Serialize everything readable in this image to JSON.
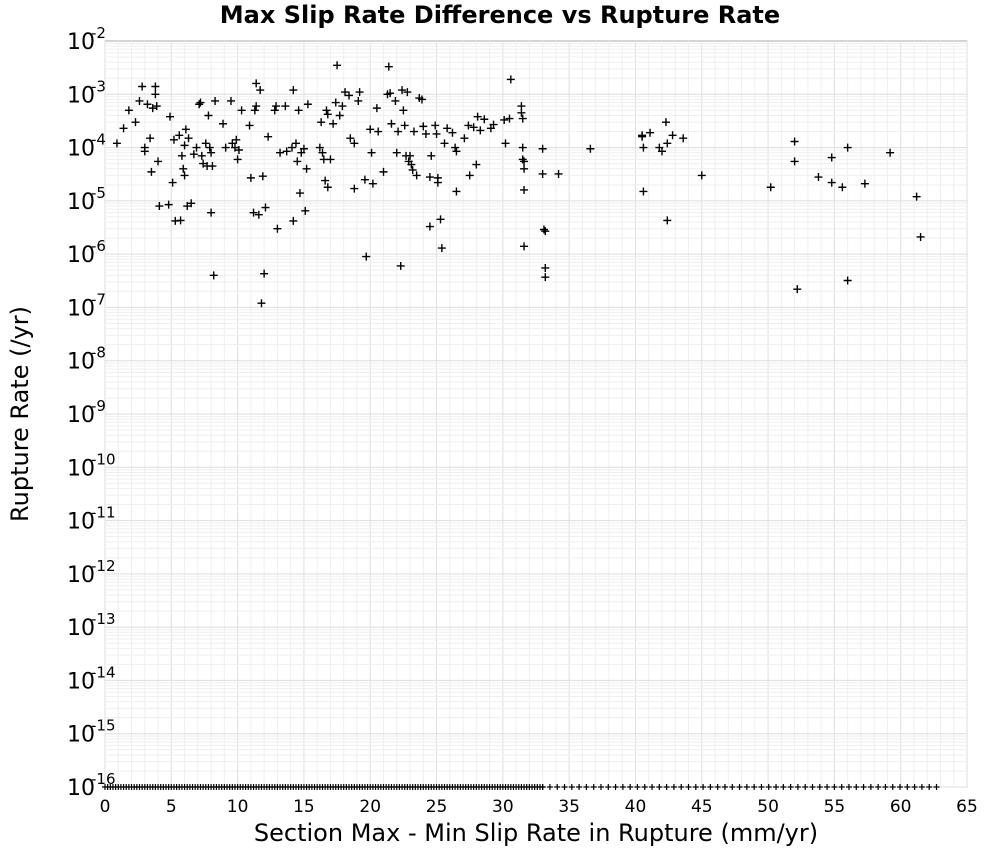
{
  "chart_data": {
    "type": "scatter",
    "title": "Max Slip Rate Difference vs Rupture Rate",
    "xlabel": "Section Max - Min Slip Rate in Rupture (mm/yr)",
    "ylabel": "Rupture Rate (/yr)",
    "xlim": [
      0,
      65
    ],
    "ylim": [
      1e-16,
      0.01
    ],
    "yscale": "log",
    "grid": true,
    "marker": "plus",
    "marker_color": "#000000",
    "x_ticks": [
      "0",
      "5",
      "10",
      "15",
      "20",
      "25",
      "30",
      "35",
      "40",
      "45",
      "50",
      "55",
      "60",
      "65"
    ],
    "y_ticks": [
      {
        "base": "10",
        "exp": "-2"
      },
      {
        "base": "10",
        "exp": "-3"
      },
      {
        "base": "10",
        "exp": "-4"
      },
      {
        "base": "10",
        "exp": "-5"
      },
      {
        "base": "10",
        "exp": "-6"
      },
      {
        "base": "10",
        "exp": "-7"
      },
      {
        "base": "10",
        "exp": "-8"
      },
      {
        "base": "10",
        "exp": "-9"
      },
      {
        "base": "10",
        "exp": "-10"
      },
      {
        "base": "10",
        "exp": "-11"
      },
      {
        "base": "10",
        "exp": "-12"
      },
      {
        "base": "10",
        "exp": "-13"
      },
      {
        "base": "10",
        "exp": "-14"
      },
      {
        "base": "10",
        "exp": "-15"
      },
      {
        "base": "10",
        "exp": "-16"
      }
    ],
    "points": [
      [
        0.9,
        0.00012
      ],
      [
        1.4,
        0.00023
      ],
      [
        1.8,
        0.0005
      ],
      [
        2.3,
        0.0003
      ],
      [
        2.6,
        0.00075
      ],
      [
        2.8,
        0.0014
      ],
      [
        3.0,
        0.0001
      ],
      [
        3.0,
        8.5e-05
      ],
      [
        3.2,
        0.00065
      ],
      [
        3.4,
        0.00015
      ],
      [
        3.5,
        3.5e-05
      ],
      [
        3.6,
        0.00055
      ],
      [
        3.8,
        0.0014
      ],
      [
        3.8,
        0.001
      ],
      [
        3.9,
        0.0006
      ],
      [
        4.0,
        5.5e-05
      ],
      [
        4.1,
        8e-06
      ],
      [
        4.8,
        8.5e-06
      ],
      [
        4.9,
        0.00038
      ],
      [
        5.1,
        2.2e-05
      ],
      [
        5.2,
        0.00014
      ],
      [
        5.3,
        4.2e-06
      ],
      [
        5.6,
        0.00017
      ],
      [
        5.7,
        4.3e-06
      ],
      [
        5.8,
        7e-05
      ],
      [
        5.9,
        4e-05
      ],
      [
        6.0,
        0.00011
      ],
      [
        6.0,
        3e-05
      ],
      [
        6.1,
        0.00022
      ],
      [
        6.2,
        8e-06
      ],
      [
        6.3,
        0.00015
      ],
      [
        6.5,
        9e-06
      ],
      [
        6.7,
        7.5e-05
      ],
      [
        6.9,
        0.0001
      ],
      [
        7.1,
        0.00065
      ],
      [
        7.2,
        0.0007
      ],
      [
        7.3,
        7e-05
      ],
      [
        7.4,
        5e-05
      ],
      [
        7.6,
        0.00012
      ],
      [
        7.7,
        4.5e-05
      ],
      [
        7.8,
        0.0004
      ],
      [
        7.9,
        0.0001
      ],
      [
        8.0,
        8e-05
      ],
      [
        8.0,
        6e-06
      ],
      [
        8.1,
        4.5e-05
      ],
      [
        8.2,
        4e-07
      ],
      [
        8.3,
        0.00075
      ],
      [
        8.9,
        0.00028
      ],
      [
        9.1,
        0.0001
      ],
      [
        9.5,
        0.00075
      ],
      [
        9.6,
        0.00012
      ],
      [
        9.8,
        0.0001
      ],
      [
        9.9,
        0.00014
      ],
      [
        10.0,
        6e-05
      ],
      [
        10.1,
        9e-05
      ],
      [
        10.3,
        0.0005
      ],
      [
        10.9,
        0.00026
      ],
      [
        11.0,
        2.7e-05
      ],
      [
        11.2,
        6e-06
      ],
      [
        11.3,
        0.0005
      ],
      [
        11.4,
        0.0006
      ],
      [
        11.4,
        0.0016
      ],
      [
        11.6,
        5.5e-06
      ],
      [
        11.7,
        0.0012
      ],
      [
        11.8,
        1.2e-07
      ],
      [
        11.9,
        2.9e-05
      ],
      [
        12.0,
        4.3e-07
      ],
      [
        12.1,
        7.5e-06
      ],
      [
        12.3,
        0.00016
      ],
      [
        12.8,
        0.0005
      ],
      [
        12.9,
        0.0006
      ],
      [
        13.0,
        3e-06
      ],
      [
        13.2,
        8e-05
      ],
      [
        13.6,
        0.0006
      ],
      [
        13.7,
        8.5e-05
      ],
      [
        14.1,
        0.0001
      ],
      [
        14.2,
        0.0012
      ],
      [
        14.2,
        4.2e-06
      ],
      [
        14.4,
        0.00012
      ],
      [
        14.5,
        5.5e-05
      ],
      [
        14.6,
        0.0005
      ],
      [
        14.7,
        1.4e-05
      ],
      [
        14.8,
        8e-05
      ],
      [
        15.0,
        9.5e-05
      ],
      [
        15.1,
        6.5e-06
      ],
      [
        15.2,
        4e-05
      ],
      [
        15.3,
        0.00065
      ],
      [
        16.2,
        0.0001
      ],
      [
        16.3,
        0.0003
      ],
      [
        16.4,
        8e-05
      ],
      [
        16.5,
        6e-05
      ],
      [
        16.6,
        2.4e-05
      ],
      [
        16.7,
        0.0005
      ],
      [
        16.8,
        0.00042
      ],
      [
        16.8,
        1.8e-05
      ],
      [
        17.0,
        6e-05
      ],
      [
        17.2,
        0.00028
      ],
      [
        17.4,
        0.0007
      ],
      [
        17.5,
        0.0035
      ],
      [
        17.7,
        0.0004
      ],
      [
        17.9,
        0.0006
      ],
      [
        18.1,
        0.0011
      ],
      [
        18.4,
        0.00095
      ],
      [
        18.5,
        0.00015
      ],
      [
        18.8,
        1.7e-05
      ],
      [
        18.8,
        0.00012
      ],
      [
        19.1,
        0.00075
      ],
      [
        19.2,
        0.0011
      ],
      [
        19.6,
        2.5e-05
      ],
      [
        19.7,
        9e-07
      ],
      [
        20.0,
        0.00022
      ],
      [
        20.1,
        8e-05
      ],
      [
        20.2,
        2.1e-05
      ],
      [
        20.5,
        0.00055
      ],
      [
        20.6,
        0.0002
      ],
      [
        21.0,
        3.5e-05
      ],
      [
        21.3,
        0.001
      ],
      [
        21.4,
        0.0033
      ],
      [
        21.5,
        0.00105
      ],
      [
        21.6,
        0.00028
      ],
      [
        21.9,
        0.00075
      ],
      [
        22.0,
        8e-05
      ],
      [
        22.1,
        0.0002
      ],
      [
        22.3,
        6e-07
      ],
      [
        22.4,
        0.0012
      ],
      [
        22.5,
        0.0005
      ],
      [
        22.6,
        0.00026
      ],
      [
        22.7,
        7e-05
      ],
      [
        22.8,
        0.0011
      ],
      [
        22.9,
        5.5e-05
      ],
      [
        23.0,
        7e-05
      ],
      [
        23.1,
        4.8e-05
      ],
      [
        23.2,
        3.8e-05
      ],
      [
        23.3,
        0.0002
      ],
      [
        23.5,
        3e-05
      ],
      [
        23.7,
        0.00085
      ],
      [
        23.9,
        0.0008
      ],
      [
        24.0,
        0.00025
      ],
      [
        24.2,
        0.00018
      ],
      [
        24.5,
        2.8e-05
      ],
      [
        24.5,
        3.3e-06
      ],
      [
        24.6,
        7e-05
      ],
      [
        24.9,
        0.00026
      ],
      [
        25.0,
        0.00018
      ],
      [
        25.1,
        2.7e-05
      ],
      [
        25.1,
        2.2e-05
      ],
      [
        25.3,
        4.5e-06
      ],
      [
        25.4,
        1.3e-06
      ],
      [
        25.6,
        0.00012
      ],
      [
        25.8,
        0.00023
      ],
      [
        26.2,
        0.00019
      ],
      [
        26.4,
        0.0001
      ],
      [
        26.5,
        8.5e-05
      ],
      [
        26.5,
        1.5e-05
      ],
      [
        27.1,
        0.00015
      ],
      [
        27.4,
        0.00026
      ],
      [
        27.5,
        3e-05
      ],
      [
        27.8,
        0.00024
      ],
      [
        28.0,
        4.8e-05
      ],
      [
        28.1,
        0.00038
      ],
      [
        28.3,
        0.00021
      ],
      [
        28.6,
        0.00034
      ],
      [
        29.1,
        0.00023
      ],
      [
        29.3,
        0.00027
      ],
      [
        30.1,
        0.00033
      ],
      [
        30.2,
        0.00012
      ],
      [
        30.5,
        0.00035
      ],
      [
        30.6,
        0.0019
      ],
      [
        31.4,
        0.0006
      ],
      [
        31.4,
        0.00045
      ],
      [
        31.5,
        0.00035
      ],
      [
        31.5,
        0.0001
      ],
      [
        31.5,
        6e-05
      ],
      [
        31.6,
        5.5e-05
      ],
      [
        31.6,
        4e-05
      ],
      [
        31.6,
        1.6e-05
      ],
      [
        31.6,
        1.4e-06
      ],
      [
        33.0,
        3.2e-05
      ],
      [
        33.0,
        9.5e-05
      ],
      [
        33.1,
        2.9e-06
      ],
      [
        33.2,
        2.7e-06
      ],
      [
        33.2,
        5.5e-07
      ],
      [
        33.2,
        3.7e-07
      ],
      [
        34.2,
        3.2e-05
      ],
      [
        36.6,
        9.5e-05
      ],
      [
        40.5,
        0.00017
      ],
      [
        40.5,
        0.00016
      ],
      [
        40.6,
        0.0001
      ],
      [
        40.6,
        1.5e-05
      ],
      [
        41.1,
        0.00019
      ],
      [
        41.8,
        0.0001
      ],
      [
        42.0,
        8.5e-05
      ],
      [
        42.3,
        0.0003
      ],
      [
        42.4,
        0.00012
      ],
      [
        42.4,
        4.3e-06
      ],
      [
        42.8,
        0.00017
      ],
      [
        43.6,
        0.00015
      ],
      [
        45.0,
        3e-05
      ],
      [
        50.2,
        1.8e-05
      ],
      [
        52.0,
        0.00013
      ],
      [
        52.0,
        5.5e-05
      ],
      [
        52.2,
        2.2e-07
      ],
      [
        53.8,
        2.8e-05
      ],
      [
        54.8,
        6.5e-05
      ],
      [
        54.8,
        2.2e-05
      ],
      [
        55.6,
        1.8e-05
      ],
      [
        56.0,
        0.0001
      ],
      [
        56.0,
        3.2e-07
      ],
      [
        57.3,
        2.1e-05
      ],
      [
        59.2,
        8e-05
      ],
      [
        61.2,
        1.2e-05
      ],
      [
        61.5,
        2.1e-06
      ]
    ],
    "floor_points": {
      "y": 1e-16,
      "x_ranges": [
        [
          0,
          33.0
        ],
        [
          33.0,
          63.0
        ]
      ],
      "density": [
        0.2,
        0.55
      ]
    }
  }
}
